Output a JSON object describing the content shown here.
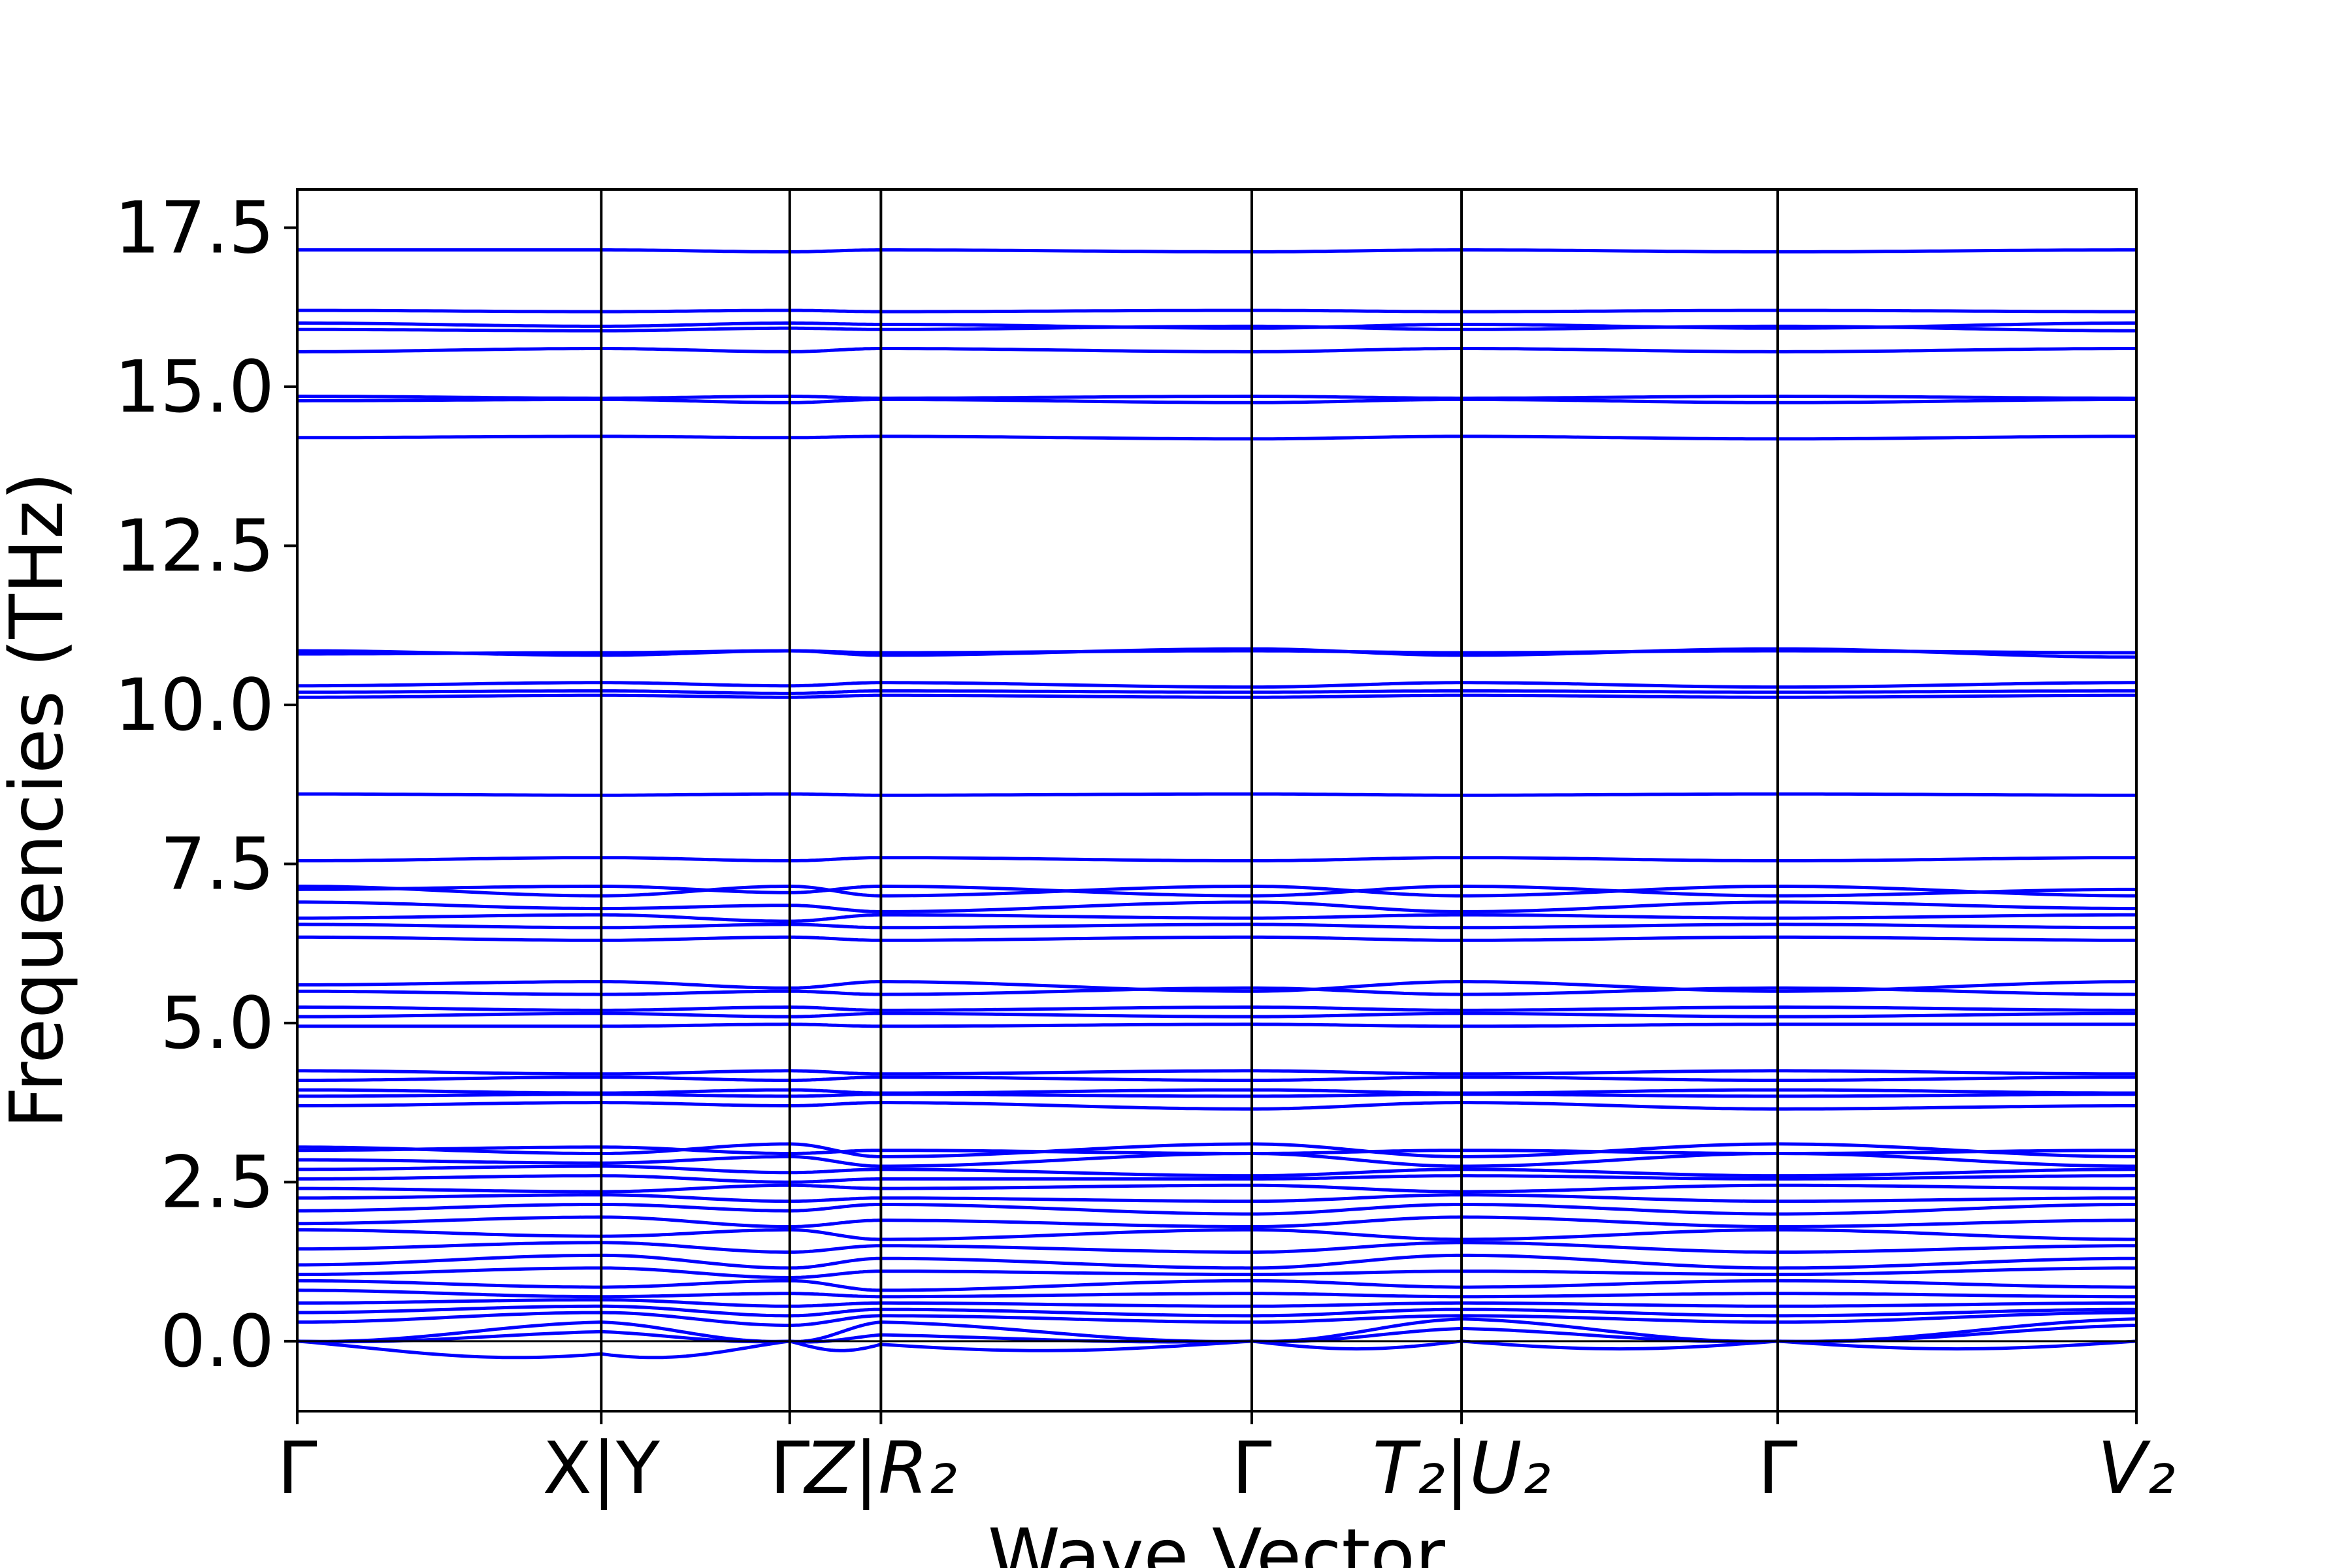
{
  "chart_data": {
    "type": "line",
    "title": "",
    "xlabel": "Wave Vector",
    "ylabel": "Frequencies (THz)",
    "ylim": [
      -1.1,
      18.1
    ],
    "y_ticks": [
      "0.0",
      "2.5",
      "5.0",
      "7.5",
      "10.0",
      "12.5",
      "15.0",
      "17.5"
    ],
    "x_ticks": [
      {
        "label": "Γ",
        "math": false
      },
      {
        "label": "X|Y",
        "math": false
      },
      {
        "label": "Γ",
        "math": false
      },
      {
        "label": "Z|R₂",
        "math": true
      },
      {
        "label": "Γ",
        "math": false
      },
      {
        "label": "T₂|U₂",
        "math": true
      },
      {
        "label": "Γ",
        "math": false
      },
      {
        "label": "V₂",
        "math": true
      }
    ],
    "segment_boundaries": [
      0,
      1,
      1.62,
      1.92,
      3.14,
      3.83,
      4.87,
      6.05
    ],
    "series_color": "#0000ff",
    "grid": false,
    "legend": "none",
    "high_bands_thz": [
      [
        17.15,
        17.15,
        17.12,
        17.15,
        17.12,
        17.15,
        17.12,
        17.15
      ],
      [
        16.2,
        16.18,
        16.2,
        16.18,
        16.2,
        16.18,
        16.2,
        16.18
      ],
      [
        16.0,
        15.95,
        16.0,
        15.98,
        15.92,
        15.98,
        15.92,
        16.0
      ],
      [
        15.9,
        15.88,
        15.92,
        15.9,
        15.95,
        15.9,
        15.95,
        15.88
      ],
      [
        15.55,
        15.6,
        15.55,
        15.6,
        15.55,
        15.6,
        15.55,
        15.6
      ],
      [
        14.85,
        14.82,
        14.85,
        14.82,
        14.85,
        14.82,
        14.85,
        14.82
      ],
      [
        14.78,
        14.8,
        14.75,
        14.8,
        14.75,
        14.8,
        14.75,
        14.8
      ],
      [
        14.2,
        14.22,
        14.2,
        14.22,
        14.18,
        14.22,
        14.18,
        14.22
      ],
      [
        10.85,
        10.78,
        10.85,
        10.78,
        10.88,
        10.78,
        10.88,
        10.75
      ],
      [
        10.8,
        10.82,
        10.85,
        10.82,
        10.85,
        10.82,
        10.85,
        10.82
      ],
      [
        10.3,
        10.35,
        10.3,
        10.35,
        10.28,
        10.35,
        10.28,
        10.35
      ],
      [
        10.2,
        10.22,
        10.18,
        10.22,
        10.2,
        10.22,
        10.2,
        10.22
      ],
      [
        10.12,
        10.15,
        10.12,
        10.15,
        10.12,
        10.15,
        10.12,
        10.15
      ],
      [
        8.6,
        8.58,
        8.6,
        8.58,
        8.6,
        8.58,
        8.6,
        8.58
      ],
      [
        7.55,
        7.6,
        7.55,
        7.6,
        7.55,
        7.6,
        7.55,
        7.6
      ],
      [
        7.15,
        7.0,
        7.15,
        7.0,
        7.15,
        7.0,
        7.15,
        7.0
      ],
      [
        7.1,
        7.15,
        7.05,
        7.15,
        7.0,
        7.15,
        7.0,
        7.1
      ],
      [
        6.9,
        6.8,
        6.85,
        6.75,
        6.9,
        6.75,
        6.9,
        6.8
      ],
      [
        6.65,
        6.7,
        6.6,
        6.7,
        6.65,
        6.7,
        6.65,
        6.7
      ],
      [
        6.55,
        6.5,
        6.55,
        6.5,
        6.55,
        6.5,
        6.55,
        6.5
      ],
      [
        6.35,
        6.3,
        6.35,
        6.3,
        6.35,
        6.3,
        6.35,
        6.3
      ],
      [
        5.6,
        5.65,
        5.55,
        5.65,
        5.5,
        5.65,
        5.5,
        5.65
      ],
      [
        5.5,
        5.45,
        5.5,
        5.45,
        5.55,
        5.45,
        5.55,
        5.45
      ],
      [
        5.25,
        5.2,
        5.25,
        5.2,
        5.25,
        5.2,
        5.25,
        5.2
      ],
      [
        5.1,
        5.15,
        5.1,
        5.15,
        5.1,
        5.15,
        5.1,
        5.15
      ],
      [
        4.95,
        4.95,
        4.98,
        4.95,
        4.98,
        4.95,
        4.98,
        4.98
      ],
      [
        4.25,
        4.2,
        4.25,
        4.2,
        4.25,
        4.2,
        4.25,
        4.2
      ],
      [
        4.1,
        4.15,
        4.1,
        4.15,
        4.1,
        4.15,
        4.1,
        4.15
      ],
      [
        3.95,
        3.9,
        3.95,
        3.9,
        3.95,
        3.9,
        3.95,
        3.9
      ],
      [
        3.85,
        3.88,
        3.85,
        3.88,
        3.85,
        3.88,
        3.85,
        3.88
      ],
      [
        3.7,
        3.75,
        3.7,
        3.75,
        3.65,
        3.75,
        3.65,
        3.7
      ]
    ],
    "low_bands_thz": [
      [
        3.05,
        2.95,
        3.1,
        2.9,
        3.1,
        2.9,
        3.1,
        2.9
      ],
      [
        3.0,
        3.05,
        2.95,
        3.0,
        2.95,
        3.0,
        2.95,
        3.0
      ],
      [
        2.85,
        2.8,
        2.9,
        2.75,
        2.95,
        2.75,
        2.95,
        2.75
      ],
      [
        2.7,
        2.75,
        2.65,
        2.7,
        2.6,
        2.7,
        2.6,
        2.7
      ],
      [
        2.55,
        2.6,
        2.5,
        2.55,
        2.55,
        2.6,
        2.55,
        2.6
      ],
      [
        2.4,
        2.35,
        2.45,
        2.4,
        2.45,
        2.35,
        2.45,
        2.4
      ],
      [
        2.25,
        2.3,
        2.2,
        2.25,
        2.2,
        2.3,
        2.2,
        2.25
      ],
      [
        2.05,
        2.15,
        2.05,
        2.15,
        2.0,
        2.15,
        2.0,
        2.15
      ],
      [
        1.85,
        1.95,
        1.8,
        1.9,
        1.8,
        1.95,
        1.8,
        1.9
      ],
      [
        1.75,
        1.65,
        1.75,
        1.6,
        1.75,
        1.6,
        1.75,
        1.6
      ],
      [
        1.45,
        1.55,
        1.4,
        1.5,
        1.4,
        1.55,
        1.4,
        1.5
      ],
      [
        1.2,
        1.35,
        1.15,
        1.3,
        1.15,
        1.35,
        1.15,
        1.3
      ],
      [
        1.05,
        1.15,
        1.0,
        1.1,
        1.05,
        1.1,
        1.05,
        1.15
      ],
      [
        0.95,
        0.85,
        0.95,
        0.8,
        0.95,
        0.85,
        0.95,
        0.85
      ],
      [
        0.8,
        0.7,
        0.75,
        0.7,
        0.75,
        0.7,
        0.75,
        0.7
      ],
      [
        0.6,
        0.65,
        0.55,
        0.6,
        0.55,
        0.6,
        0.55,
        0.6
      ],
      [
        0.45,
        0.55,
        0.4,
        0.5,
        0.4,
        0.5,
        0.4,
        0.5
      ],
      [
        0.3,
        0.45,
        0.25,
        0.4,
        0.3,
        0.4,
        0.3,
        0.45
      ]
    ],
    "acoustic_bands_thz": [
      [
        0.0,
        0.3,
        0.0,
        0.3,
        0.0,
        0.35,
        0.0,
        0.35
      ],
      [
        0.0,
        0.15,
        0.0,
        0.1,
        0.0,
        0.2,
        0.0,
        0.25
      ],
      [
        0.0,
        -0.2,
        0.0,
        -0.05,
        0.0,
        0.0,
        0.0,
        0.0
      ]
    ]
  }
}
